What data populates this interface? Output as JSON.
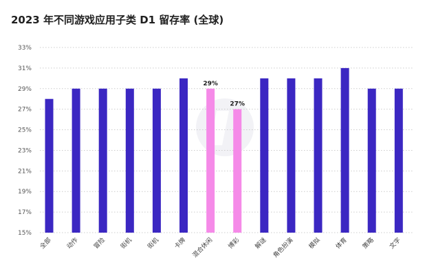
{
  "chart_data": {
    "type": "bar",
    "title": "2023 年不同游戏应用子类 D1 留存率 (全球)",
    "xlabel": "",
    "ylabel": "",
    "ylim": [
      15,
      33
    ],
    "y_ticks": [
      "15%",
      "17%",
      "19%",
      "21%",
      "23%",
      "25%",
      "27%",
      "29%",
      "31%",
      "33%"
    ],
    "grid": true,
    "categories": [
      "全部",
      "动作",
      "冒险",
      "街机",
      "街机",
      "卡牌",
      "混合休闲",
      "博彩",
      "解谜",
      "角色扮演",
      "模拟",
      "体育",
      "策略",
      "文字"
    ],
    "values": [
      28,
      29,
      29,
      29,
      29,
      30,
      29,
      27,
      30,
      30,
      30,
      31,
      29,
      29
    ],
    "highlighted": [
      false,
      false,
      false,
      false,
      false,
      false,
      true,
      true,
      false,
      false,
      false,
      false,
      false,
      false
    ],
    "data_labels": [
      "",
      "",
      "",
      "",
      "",
      "",
      "29%",
      "27%",
      "",
      "",
      "",
      "",
      "",
      ""
    ],
    "colors": {
      "bar": "#3b27c2",
      "highlight": "#f58ae8",
      "grid": "#cccccc",
      "watermark": "#e8e8ee"
    }
  }
}
